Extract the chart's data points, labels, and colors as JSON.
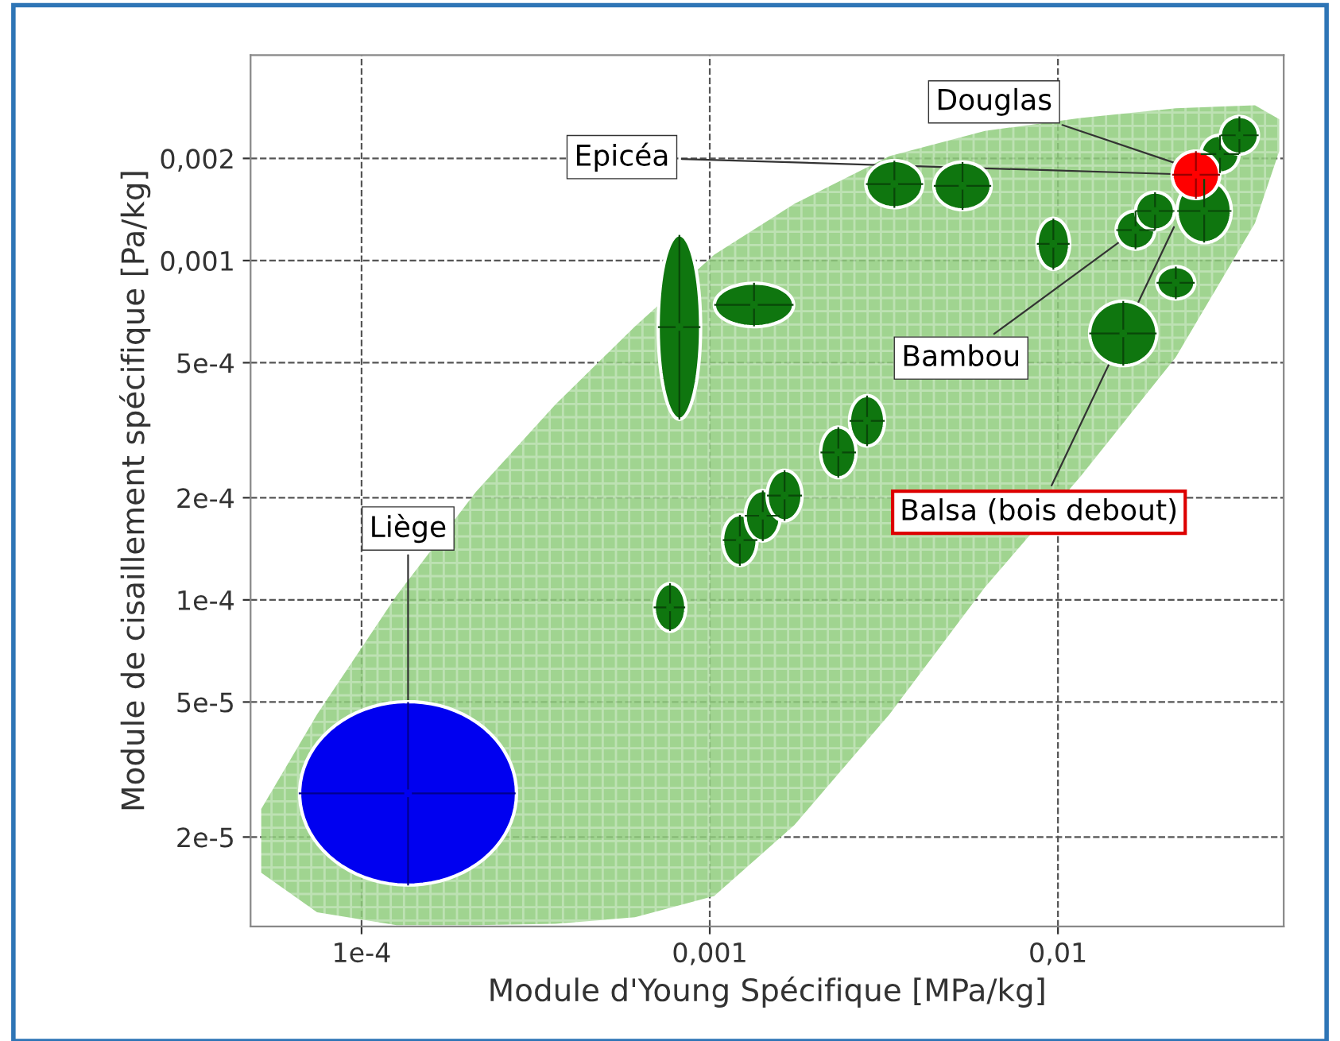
{
  "chart_data": {
    "type": "scatter",
    "xlabel": "Module d'Young Spécifique [MPa/kg]",
    "ylabel": "Module de cisaillement spécifique [Pa/kg]",
    "log": "xy",
    "grid": true,
    "line_style": "dashed",
    "marker": "circle",
    "xlim": [
      4.8e-05,
      0.0445
    ],
    "ylim": [
      1.09e-05,
      0.00403
    ],
    "xticks": [
      {
        "value": 0.0001,
        "label": "1e-4"
      },
      {
        "value": 0.001,
        "label": "0,001"
      },
      {
        "value": 0.01,
        "label": "0,01"
      }
    ],
    "yticks": [
      {
        "value": 2e-05,
        "label": "2e-5"
      },
      {
        "value": 5e-05,
        "label": "5e-5"
      },
      {
        "value": 0.0001,
        "label": "1e-4"
      },
      {
        "value": 0.0002,
        "label": "2e-4"
      },
      {
        "value": 0.0005,
        "label": "5e-4"
      },
      {
        "value": 0.001,
        "label": "0,001"
      },
      {
        "value": 0.002,
        "label": "0,002"
      }
    ],
    "series": [
      {
        "type": "area",
        "color": "#8fcc7c",
        "x": [
          5.15e-05,
          7.45e-05,
          0.000126,
          0.000213,
          0.00036,
          0.00061,
          0.00103,
          0.00175,
          0.00328,
          0.00617,
          0.0116,
          0.0218,
          0.0368,
          0.0432
        ],
        "values": [
          null,
          null,
          null,
          null,
          null,
          null,
          null,
          null,
          null,
          null,
          null,
          null,
          null,
          null
        ],
        "upper": [
          2.42e-05,
          4.6e-05,
          0.000103,
          0.000208,
          0.000376,
          0.00064,
          0.00104,
          0.00147,
          0.00203,
          0.00241,
          0.00263,
          0.00281,
          0.00287,
          0.00261
        ],
        "lower": [
          1.57e-05,
          1.2e-05,
          1.1e-05,
          1.1e-05,
          1.11e-05,
          1.16e-05,
          1.34e-05,
          2.17e-05,
          4.6e-05,
          0.000109,
          0.000231,
          0.000519,
          0.00129,
          0.0021
        ]
      },
      {
        "color": "#0f760f",
        "x": [
          0.000818,
          0.00134,
          0.000769,
          0.00122,
          0.00142,
          0.00164,
          0.00234,
          0.00283,
          0.00339,
          0.00532,
          0.0097,
          0.0154,
          0.0167,
          0.019,
          0.0218,
          0.0263,
          0.0292,
          0.0332
        ],
        "values": [
          0.000637,
          0.00074,
          9.5e-05,
          0.00015,
          0.000177,
          0.000203,
          0.000272,
          0.000337,
          0.00168,
          0.00166,
          0.00112,
          0.00061,
          0.00123,
          0.0014,
          0.00086,
          0.0014,
          0.00206,
          0.00234
        ],
        "xerrors": [
          [
            0.00071,
            0.00094
          ],
          [
            0.00103,
            0.00174
          ],
          [
            0.00069,
            0.00085
          ],
          [
            0.00109,
            0.00137
          ],
          [
            0.00126,
            0.00159
          ],
          [
            0.00146,
            0.00184
          ],
          [
            0.00208,
            0.00263
          ],
          [
            0.00252,
            0.00318
          ],
          [
            0.00281,
            0.0041
          ],
          [
            0.0044,
            0.00643
          ],
          [
            0.0087,
            0.0108
          ],
          [
            0.0123,
            0.0192
          ],
          [
            0.0147,
            0.019
          ],
          [
            0.0167,
            0.0216
          ],
          [
            0.0192,
            0.0247
          ],
          [
            0.022,
            0.0315
          ],
          [
            0.0257,
            0.0331
          ],
          [
            0.0293,
            0.0377
          ]
        ],
        "errors": [
          [
            0.00034,
            0.00119
          ],
          [
            0.00064,
            0.00086
          ],
          [
            8.1e-05,
            0.000112
          ],
          [
            0.000126,
            0.000178
          ],
          [
            0.000149,
            0.00021
          ],
          [
            0.000171,
            0.000241
          ],
          [
            0.000229,
            0.000323
          ],
          [
            0.000284,
            0.0004
          ],
          [
            0.00143,
            0.00197
          ],
          [
            0.00141,
            0.00195
          ],
          [
            0.00094,
            0.00133
          ],
          [
            0.00049,
            0.00076
          ],
          [
            0.00108,
            0.0014
          ],
          [
            0.00123,
            0.00159
          ],
          [
            0.00077,
            0.00096
          ],
          [
            0.00113,
            0.00174
          ],
          [
            0.00181,
            0.00234
          ],
          [
            0.00206,
            0.00266
          ]
        ]
      },
      {
        "color": "#0000f0",
        "x": [
          0.000136
        ],
        "values": [
          2.69e-05
        ],
        "xerrors": [
          [
            6.6e-05,
            0.000277
          ]
        ],
        "errors": [
          [
            1.44e-05,
            5e-05
          ]
        ]
      },
      {
        "color": "#ff0000",
        "x": [
          0.0249
        ],
        "values": [
          0.00179
        ],
        "xerrors": [
          [
            0.0213,
            0.0292
          ]
        ],
        "errors": [
          [
            0.00152,
            0.0021
          ]
        ]
      }
    ],
    "annotations": [
      {
        "text": "Douglas",
        "x": 0.023,
        "y": 0.0019
      },
      {
        "text": "Epicéa",
        "x": 0.0249,
        "y": 0.00179
      },
      {
        "text": "Bambou",
        "x": 0.0167,
        "y": 0.00123
      },
      {
        "text": "Balsa (bois debout)",
        "x": 0.0218,
        "y": 0.00129
      },
      {
        "text": "Liège",
        "x": 0.000136,
        "y": 2.69e-05
      }
    ]
  }
}
